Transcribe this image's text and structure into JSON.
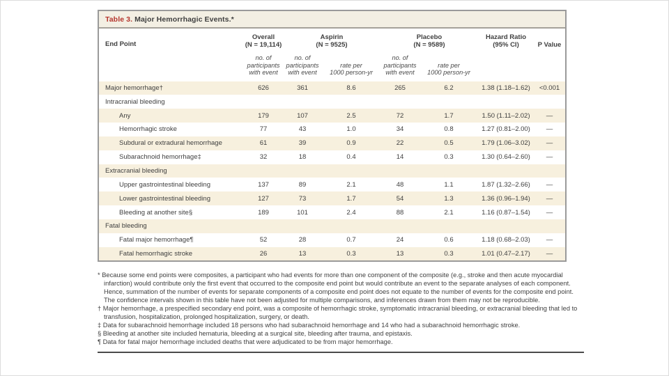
{
  "table": {
    "title": {
      "label": "Table 3.",
      "rest": " Major Hemorrhagic Events.*"
    },
    "header": {
      "end_point": "End Point",
      "overall": "Overall\n(N = 19,114)",
      "aspirin": "Aspirin\n(N = 9525)",
      "placebo": "Placebo\n(N = 9589)",
      "hazard_ratio": "Hazard Ratio\n(95% CI)",
      "p_value": "P Value",
      "sub_participants": "no. of\nparticipants\nwith event",
      "sub_rate": "rate per\n1000 person-yr"
    },
    "rows": [
      {
        "label": "Major hemorrhage†",
        "section": false,
        "indent": false,
        "shaded": true,
        "overall_n": "626",
        "aspirin_n": "361",
        "aspirin_rate": "8.6",
        "placebo_n": "265",
        "placebo_rate": "6.2",
        "hr": "1.38 (1.18–1.62)",
        "p": "<0.001"
      },
      {
        "label": "Intracranial bleeding",
        "section": true,
        "indent": false,
        "shaded": false,
        "overall_n": "",
        "aspirin_n": "",
        "aspirin_rate": "",
        "placebo_n": "",
        "placebo_rate": "",
        "hr": "",
        "p": ""
      },
      {
        "label": "Any",
        "section": false,
        "indent": true,
        "shaded": true,
        "overall_n": "179",
        "aspirin_n": "107",
        "aspirin_rate": "2.5",
        "placebo_n": "72",
        "placebo_rate": "1.7",
        "hr": "1.50 (1.11–2.02)",
        "p": "—"
      },
      {
        "label": "Hemorrhagic stroke",
        "section": false,
        "indent": true,
        "shaded": false,
        "overall_n": "77",
        "aspirin_n": "43",
        "aspirin_rate": "1.0",
        "placebo_n": "34",
        "placebo_rate": "0.8",
        "hr": "1.27 (0.81–2.00)",
        "p": "—"
      },
      {
        "label": "Subdural or extradural hemorrhage",
        "section": false,
        "indent": true,
        "shaded": true,
        "overall_n": "61",
        "aspirin_n": "39",
        "aspirin_rate": "0.9",
        "placebo_n": "22",
        "placebo_rate": "0.5",
        "hr": "1.79 (1.06–3.02)",
        "p": "—"
      },
      {
        "label": "Subarachnoid hemorrhage‡",
        "section": false,
        "indent": true,
        "shaded": false,
        "overall_n": "32",
        "aspirin_n": "18",
        "aspirin_rate": "0.4",
        "placebo_n": "14",
        "placebo_rate": "0.3",
        "hr": "1.30 (0.64–2.60)",
        "p": "—"
      },
      {
        "label": "Extracranial bleeding",
        "section": true,
        "indent": false,
        "shaded": true,
        "overall_n": "",
        "aspirin_n": "",
        "aspirin_rate": "",
        "placebo_n": "",
        "placebo_rate": "",
        "hr": "",
        "p": ""
      },
      {
        "label": "Upper gastrointestinal bleeding",
        "section": false,
        "indent": true,
        "shaded": false,
        "overall_n": "137",
        "aspirin_n": "89",
        "aspirin_rate": "2.1",
        "placebo_n": "48",
        "placebo_rate": "1.1",
        "hr": "1.87 (1.32–2.66)",
        "p": "—"
      },
      {
        "label": "Lower gastrointestinal bleeding",
        "section": false,
        "indent": true,
        "shaded": true,
        "overall_n": "127",
        "aspirin_n": "73",
        "aspirin_rate": "1.7",
        "placebo_n": "54",
        "placebo_rate": "1.3",
        "hr": "1.36 (0.96–1.94)",
        "p": "—"
      },
      {
        "label": "Bleeding at another site§",
        "section": false,
        "indent": true,
        "shaded": false,
        "overall_n": "189",
        "aspirin_n": "101",
        "aspirin_rate": "2.4",
        "placebo_n": "88",
        "placebo_rate": "2.1",
        "hr": "1.16 (0.87–1.54)",
        "p": "—"
      },
      {
        "label": "Fatal bleeding",
        "section": true,
        "indent": false,
        "shaded": true,
        "overall_n": "",
        "aspirin_n": "",
        "aspirin_rate": "",
        "placebo_n": "",
        "placebo_rate": "",
        "hr": "",
        "p": ""
      },
      {
        "label": "Fatal major hemorrhage¶",
        "section": false,
        "indent": true,
        "shaded": false,
        "overall_n": "52",
        "aspirin_n": "28",
        "aspirin_rate": "0.7",
        "placebo_n": "24",
        "placebo_rate": "0.6",
        "hr": "1.18 (0.68–2.03)",
        "p": "—"
      },
      {
        "label": "Fatal hemorrhagic stroke",
        "section": false,
        "indent": true,
        "shaded": true,
        "overall_n": "26",
        "aspirin_n": "13",
        "aspirin_rate": "0.3",
        "placebo_n": "13",
        "placebo_rate": "0.3",
        "hr": "1.01 (0.47–2.17)",
        "p": "—"
      }
    ],
    "footnotes": [
      {
        "symbol": "*",
        "text": "Because some end points were composites, a participant who had events for more than one component of the composite (e.g., stroke and then acute myocardial infarction) would contribute only the first event that occurred to the composite end point but would contribute an event to the separate analyses of each component. Hence, summation of the number of events for separate components of a composite end point does not equate to the number of events for the composite end point. The confidence intervals shown in this table have not been adjusted for multiple comparisons, and inferences drawn from them may not be reproducible."
      },
      {
        "symbol": "†",
        "text": "Major hemorrhage, a prespecified secondary end point, was a composite of hemorrhagic stroke, symptomatic intracranial bleeding, or extracranial bleeding that led to transfusion, hospitalization, prolonged hospitalization, surgery, or death."
      },
      {
        "symbol": "‡",
        "text": "Data for subarachnoid hemorrhage included 18 persons who had subarachnoid hemorrhage and 14 who had a subarachnoid hemorrhagic stroke."
      },
      {
        "symbol": "§",
        "text": "Bleeding at another site included hematuria, bleeding at a surgical site, bleeding after trauma, and epistaxis."
      },
      {
        "symbol": "¶",
        "text": "Data for fatal major hemorrhage included deaths that were adjudicated to be from major hemorrhage."
      }
    ]
  },
  "colors": {
    "accent_red": "#b5362e",
    "row_shade": "#f7f0de",
    "titlebar_bg": "#f3efe3",
    "frame_border": "#9a9a9a",
    "text": "#3f3f3f"
  }
}
